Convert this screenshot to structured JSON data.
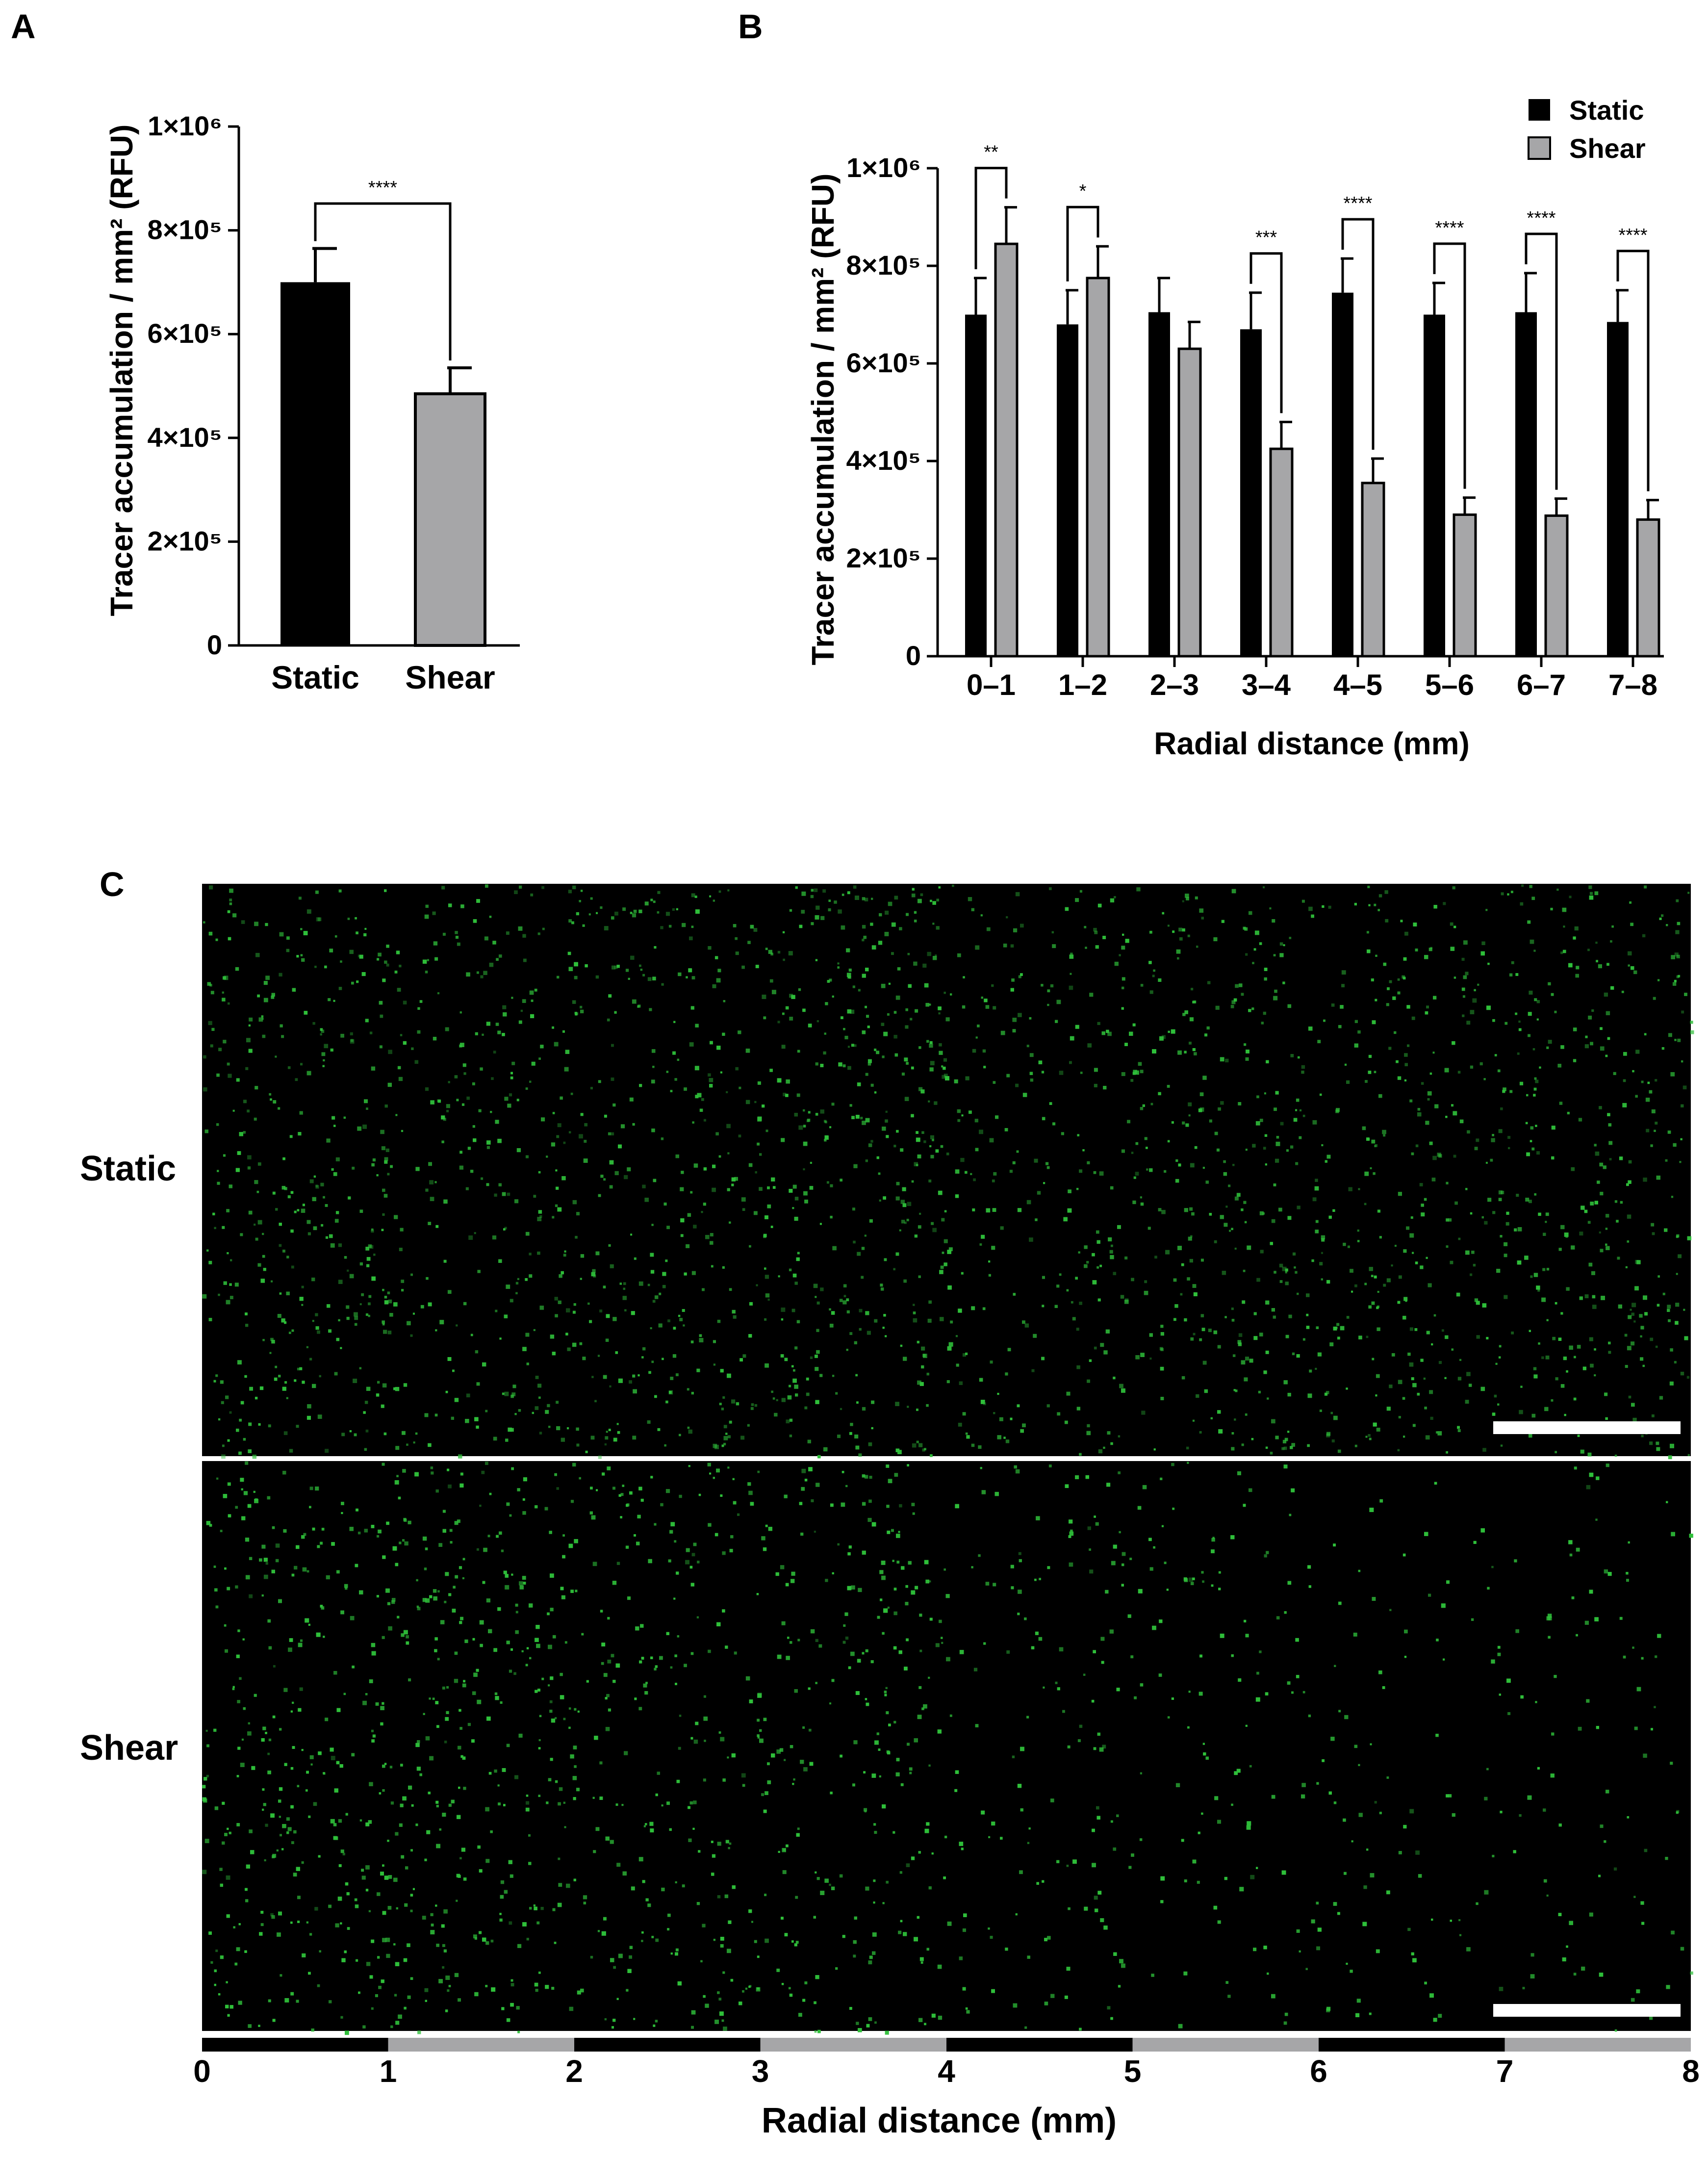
{
  "panels": {
    "a": "A",
    "b": "B",
    "c": "C"
  },
  "colors": {
    "static": "#000000",
    "shear": "#a6a6a8",
    "fluor_bg": "#000000",
    "fluor_dot": "#2fbf3a",
    "scalebar": "#ffffff"
  },
  "chart_data": [
    {
      "type": "bar",
      "panel": "A",
      "categories": [
        "Static",
        "Shear"
      ],
      "values": [
        700000,
        485000
      ],
      "errors": [
        65000,
        50000
      ],
      "colors": [
        "#000000",
        "#a6a6a8"
      ],
      "ylabel": "Tracer accumulation / mm² (RFU)",
      "ylim": [
        0,
        1000000
      ],
      "yticks": [
        {
          "value": 0,
          "label": "0"
        },
        {
          "value": 200000,
          "label": "2×10⁵"
        },
        {
          "value": 400000,
          "label": "4×10⁵"
        },
        {
          "value": 600000,
          "label": "6×10⁵"
        },
        {
          "value": 800000,
          "label": "8×10⁵"
        },
        {
          "value": 1000000,
          "label": "1×10⁶"
        }
      ],
      "significance": [
        {
          "from": 0,
          "to": 1,
          "label": "****"
        }
      ]
    },
    {
      "type": "bar",
      "panel": "B",
      "categories": [
        "0–1",
        "1–2",
        "2–3",
        "3–4",
        "4–5",
        "5–6",
        "6–7",
        "7–8"
      ],
      "series": [
        {
          "name": "Static",
          "color": "#000000",
          "values": [
            700000,
            680000,
            705000,
            670000,
            745000,
            700000,
            705000,
            685000
          ],
          "errors": [
            75000,
            70000,
            70000,
            75000,
            70000,
            65000,
            80000,
            65000
          ]
        },
        {
          "name": "Shear",
          "color": "#a6a6a8",
          "values": [
            845000,
            775000,
            630000,
            425000,
            355000,
            290000,
            288000,
            280000
          ],
          "errors": [
            75000,
            65000,
            55000,
            55000,
            50000,
            35000,
            35000,
            40000
          ]
        }
      ],
      "xlabel": "Radial distance (mm)",
      "ylabel": "Tracer accumulation / mm² (RFU)",
      "ylim": [
        0,
        1000000
      ],
      "yticks": [
        {
          "value": 0,
          "label": "0"
        },
        {
          "value": 200000,
          "label": "2×10⁵"
        },
        {
          "value": 400000,
          "label": "4×10⁵"
        },
        {
          "value": 600000,
          "label": "6×10⁵"
        },
        {
          "value": 800000,
          "label": "8×10⁵"
        },
        {
          "value": 1000000,
          "label": "1×10⁶"
        }
      ],
      "significance": [
        "**",
        "*",
        "",
        "***",
        "****",
        "****",
        "****",
        "****"
      ],
      "legend": "top-right"
    }
  ],
  "micrographs": {
    "rows": [
      {
        "label": "Static",
        "density_profile": [
          0.6,
          0.55,
          0.6,
          0.65,
          0.6,
          0.55,
          0.55,
          0.6
        ]
      },
      {
        "label": "Shear",
        "density_profile": [
          0.95,
          0.85,
          0.7,
          0.55,
          0.45,
          0.3,
          0.25,
          0.25
        ]
      }
    ],
    "axis": {
      "ticks": [
        "0",
        "1",
        "2",
        "3",
        "4",
        "5",
        "6",
        "7",
        "8"
      ],
      "label": "Radial distance (mm)"
    }
  }
}
